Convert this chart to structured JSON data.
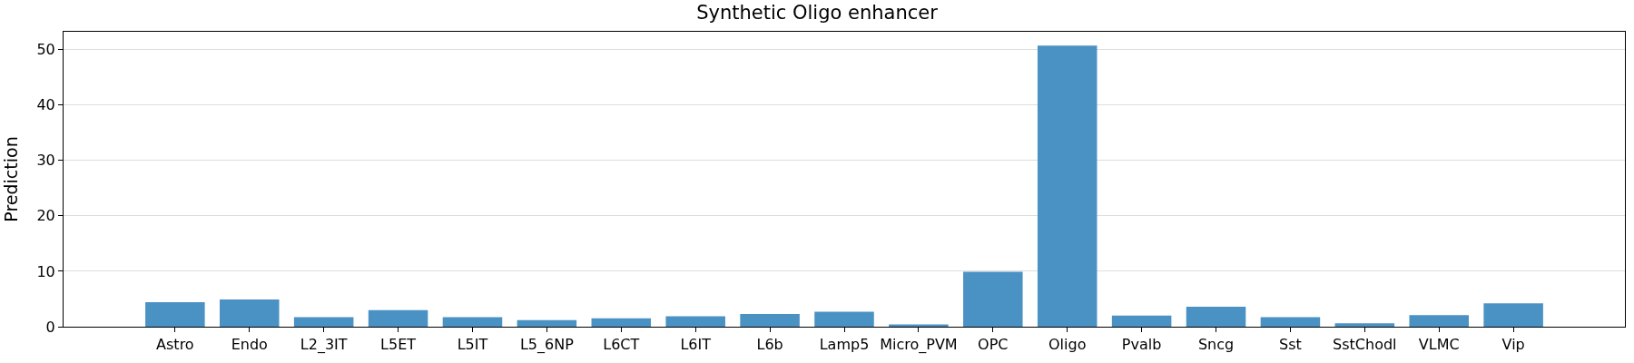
{
  "chart_data": {
    "type": "bar",
    "title": "Synthetic Oligo enhancer",
    "ylabel": "Prediction",
    "categories": [
      "Astro",
      "Endo",
      "L2_3IT",
      "L5ET",
      "L5IT",
      "L5_6NP",
      "L6CT",
      "L6IT",
      "L6b",
      "Lamp5",
      "Micro_PVM",
      "OPC",
      "Oligo",
      "Pvalb",
      "Sncg",
      "Sst",
      "SstChodl",
      "VLMC",
      "Vip"
    ],
    "values": [
      4.4,
      4.9,
      1.7,
      3.0,
      1.7,
      1.2,
      1.5,
      1.9,
      2.3,
      2.7,
      0.4,
      9.9,
      50.7,
      2.0,
      3.6,
      1.7,
      0.6,
      2.1,
      4.2
    ],
    "color": "#4a91c4",
    "ylim": [
      0,
      53.2
    ],
    "yticks": [
      0,
      10,
      20,
      30,
      40,
      50
    ],
    "grid": "y"
  }
}
